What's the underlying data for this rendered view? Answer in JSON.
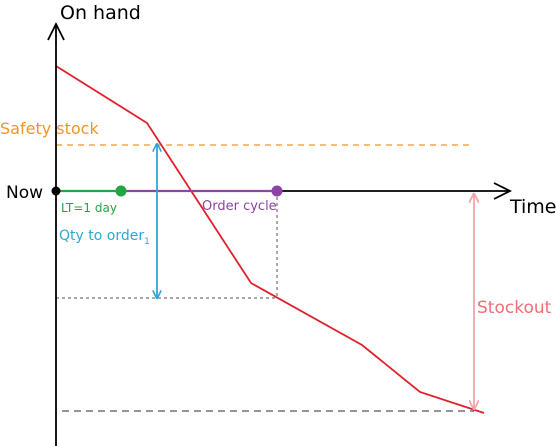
{
  "labels": {
    "y_axis": "On hand",
    "x_axis": "Time",
    "now": "Now",
    "safety_stock": "Safety stock",
    "lead_time": "LT=1 day",
    "order_cycle": "Order cycle",
    "qty_to_order": "Qty to order",
    "qty_subscript": "1",
    "stockout": "Stockout"
  },
  "colors": {
    "axis": "#000000",
    "inventory_line": "#e0202a",
    "safety_stock": "#f0952a",
    "lead_time": "#22a543",
    "order_cycle": "#8e44a6",
    "qty_arrow": "#2ea7d6",
    "stockout_arrow": "#f2a4aa",
    "guides": "#555555"
  }
}
